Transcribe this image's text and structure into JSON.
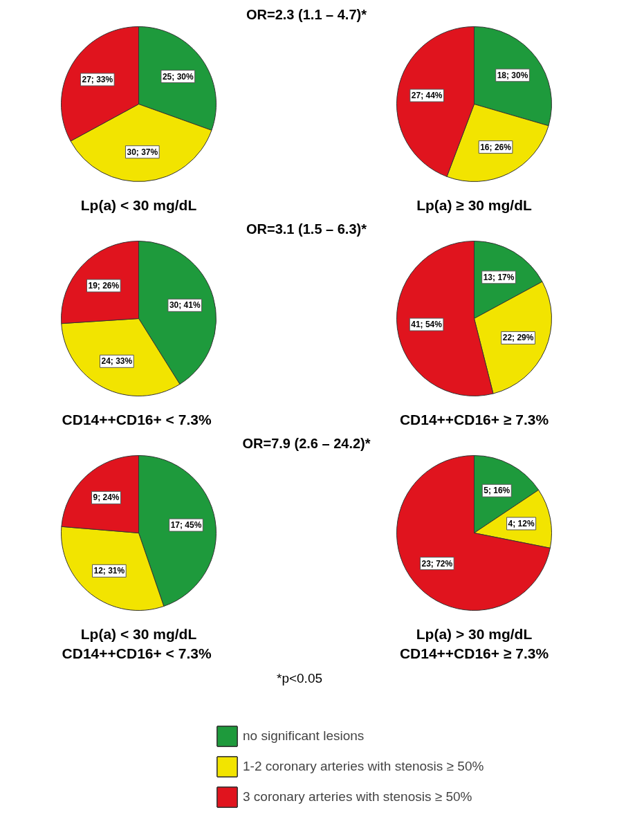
{
  "chart_data": [
    {
      "type": "pie",
      "xlabel": "Lp(a) < 30 mg/dL",
      "annotations": [
        "OR=2.3 (1.1 – 4.7)*"
      ],
      "legend": "bottom",
      "categories": [
        "no significant lesions",
        "1-2 coronary arteries with stenosis ≥ 50%",
        "3 coronary arteries with stenosis ≥ 50%"
      ],
      "values": [
        25,
        30,
        27
      ],
      "value_labels": [
        "25; 30%",
        "30; 37%",
        "27; 33%"
      ],
      "colors": [
        "#1e9a3c",
        "#f2e400",
        "#e0141e"
      ]
    },
    {
      "type": "pie",
      "xlabel": "Lp(a) ≥ 30 mg/dL",
      "categories": [
        null,
        null,
        null
      ],
      "values": [
        18,
        16,
        27
      ],
      "value_labels": [
        "18; 30%",
        "16; 26%",
        "27; 44%"
      ],
      "colors": [
        "#1e9a3c",
        "#f2e400",
        "#e0141e"
      ]
    },
    {
      "type": "pie",
      "xlabel": "CD14++CD16+  < 7.3%",
      "annotations": [
        "OR=3.1 (1.5 – 6.3)*"
      ],
      "categories": [
        null,
        null,
        null
      ],
      "values": [
        30,
        24,
        19
      ],
      "value_labels": [
        "30; 41%",
        "24; 33%",
        "19; 26%"
      ],
      "colors": [
        "#1e9a3c",
        "#f2e400",
        "#e0141e"
      ]
    },
    {
      "type": "pie",
      "xlabel": "CD14++CD16+ ≥ 7.3%",
      "categories": [
        null,
        null,
        null
      ],
      "values": [
        13,
        22,
        41
      ],
      "value_labels": [
        "13; 17%",
        "22; 29%",
        "41; 54%"
      ],
      "colors": [
        "#1e9a3c",
        "#f2e400",
        "#e0141e"
      ]
    },
    {
      "type": "pie",
      "xlabel": "Lp(a) < 30 mg/dL\nCD14++CD16+  < 7.3%",
      "annotations": [
        "OR=7.9 (2.6 – 24.2)*",
        "*p<0.05"
      ],
      "categories": [
        null,
        null,
        null
      ],
      "values": [
        17,
        12,
        9
      ],
      "value_labels": [
        "17; 45%",
        "12; 31%",
        "9; 24%"
      ],
      "colors": [
        "#1e9a3c",
        "#f2e400",
        "#e0141e"
      ]
    },
    {
      "type": "pie",
      "xlabel": "Lp(a) > 30 mg/dL\nCD14++CD16+ ≥ 7.3%",
      "categories": [
        null,
        null,
        null
      ],
      "values": [
        5,
        4,
        23
      ],
      "value_labels": [
        "5; 16%",
        "4; 12%",
        "23; 72%"
      ],
      "colors": [
        "#1e9a3c",
        "#f2e400",
        "#e0141e"
      ]
    }
  ]
}
